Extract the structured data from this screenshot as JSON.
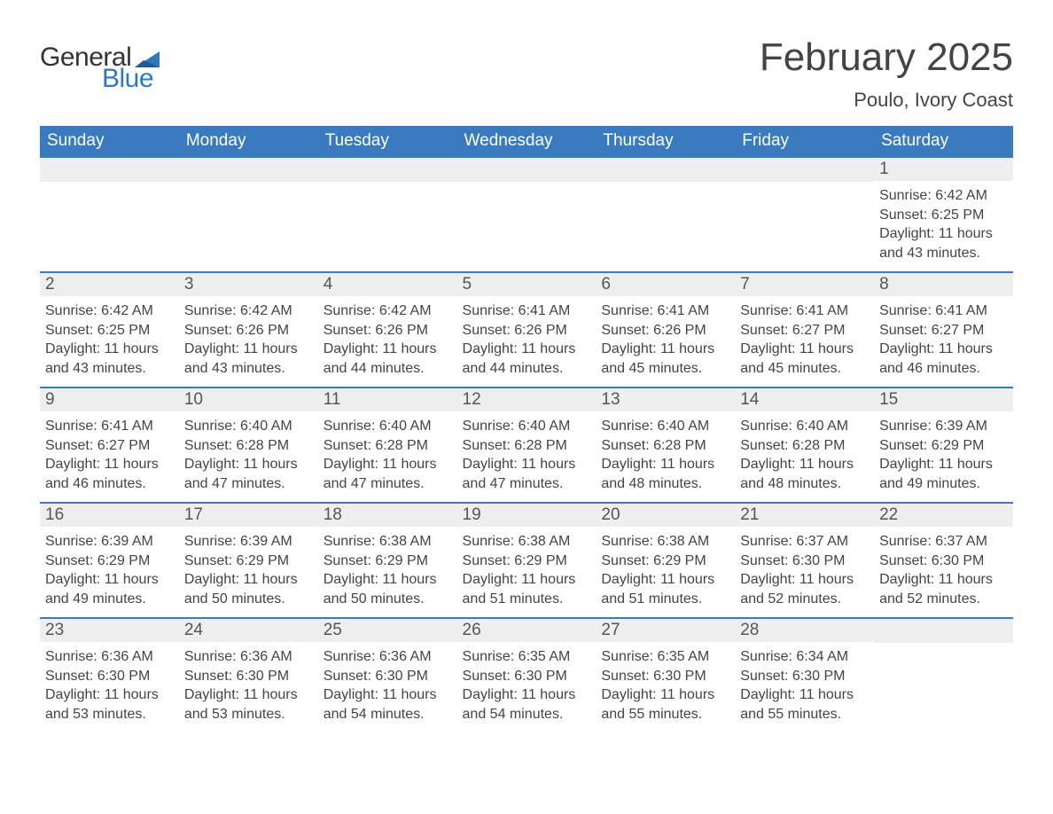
{
  "brand": {
    "word1": "General",
    "word2": "Blue",
    "tri_color": "#2f78bf",
    "text_color": "#333333",
    "blue_color": "#2f78bf"
  },
  "title": "February 2025",
  "location": "Poulo, Ivory Coast",
  "colors": {
    "header_bg": "#3a7bbf",
    "header_text": "#ffffff",
    "daynum_bg": "#eeeeee",
    "daynum_text": "#555555",
    "body_text": "#444444",
    "rule": "#3a7bbf",
    "title_color": "#444444"
  },
  "font_sizes": {
    "title_pt": 33,
    "location_pt": 17,
    "weekday_pt": 14,
    "daynum_pt": 14,
    "body_pt": 12
  },
  "weekdays": [
    "Sunday",
    "Monday",
    "Tuesday",
    "Wednesday",
    "Thursday",
    "Friday",
    "Saturday"
  ],
  "weeks": [
    [
      null,
      null,
      null,
      null,
      null,
      null,
      {
        "n": "1",
        "sunrise": "Sunrise: 6:42 AM",
        "sunset": "Sunset: 6:25 PM",
        "daylight": "Daylight: 11 hours and 43 minutes."
      }
    ],
    [
      {
        "n": "2",
        "sunrise": "Sunrise: 6:42 AM",
        "sunset": "Sunset: 6:25 PM",
        "daylight": "Daylight: 11 hours and 43 minutes."
      },
      {
        "n": "3",
        "sunrise": "Sunrise: 6:42 AM",
        "sunset": "Sunset: 6:26 PM",
        "daylight": "Daylight: 11 hours and 43 minutes."
      },
      {
        "n": "4",
        "sunrise": "Sunrise: 6:42 AM",
        "sunset": "Sunset: 6:26 PM",
        "daylight": "Daylight: 11 hours and 44 minutes."
      },
      {
        "n": "5",
        "sunrise": "Sunrise: 6:41 AM",
        "sunset": "Sunset: 6:26 PM",
        "daylight": "Daylight: 11 hours and 44 minutes."
      },
      {
        "n": "6",
        "sunrise": "Sunrise: 6:41 AM",
        "sunset": "Sunset: 6:26 PM",
        "daylight": "Daylight: 11 hours and 45 minutes."
      },
      {
        "n": "7",
        "sunrise": "Sunrise: 6:41 AM",
        "sunset": "Sunset: 6:27 PM",
        "daylight": "Daylight: 11 hours and 45 minutes."
      },
      {
        "n": "8",
        "sunrise": "Sunrise: 6:41 AM",
        "sunset": "Sunset: 6:27 PM",
        "daylight": "Daylight: 11 hours and 46 minutes."
      }
    ],
    [
      {
        "n": "9",
        "sunrise": "Sunrise: 6:41 AM",
        "sunset": "Sunset: 6:27 PM",
        "daylight": "Daylight: 11 hours and 46 minutes."
      },
      {
        "n": "10",
        "sunrise": "Sunrise: 6:40 AM",
        "sunset": "Sunset: 6:28 PM",
        "daylight": "Daylight: 11 hours and 47 minutes."
      },
      {
        "n": "11",
        "sunrise": "Sunrise: 6:40 AM",
        "sunset": "Sunset: 6:28 PM",
        "daylight": "Daylight: 11 hours and 47 minutes."
      },
      {
        "n": "12",
        "sunrise": "Sunrise: 6:40 AM",
        "sunset": "Sunset: 6:28 PM",
        "daylight": "Daylight: 11 hours and 47 minutes."
      },
      {
        "n": "13",
        "sunrise": "Sunrise: 6:40 AM",
        "sunset": "Sunset: 6:28 PM",
        "daylight": "Daylight: 11 hours and 48 minutes."
      },
      {
        "n": "14",
        "sunrise": "Sunrise: 6:40 AM",
        "sunset": "Sunset: 6:28 PM",
        "daylight": "Daylight: 11 hours and 48 minutes."
      },
      {
        "n": "15",
        "sunrise": "Sunrise: 6:39 AM",
        "sunset": "Sunset: 6:29 PM",
        "daylight": "Daylight: 11 hours and 49 minutes."
      }
    ],
    [
      {
        "n": "16",
        "sunrise": "Sunrise: 6:39 AM",
        "sunset": "Sunset: 6:29 PM",
        "daylight": "Daylight: 11 hours and 49 minutes."
      },
      {
        "n": "17",
        "sunrise": "Sunrise: 6:39 AM",
        "sunset": "Sunset: 6:29 PM",
        "daylight": "Daylight: 11 hours and 50 minutes."
      },
      {
        "n": "18",
        "sunrise": "Sunrise: 6:38 AM",
        "sunset": "Sunset: 6:29 PM",
        "daylight": "Daylight: 11 hours and 50 minutes."
      },
      {
        "n": "19",
        "sunrise": "Sunrise: 6:38 AM",
        "sunset": "Sunset: 6:29 PM",
        "daylight": "Daylight: 11 hours and 51 minutes."
      },
      {
        "n": "20",
        "sunrise": "Sunrise: 6:38 AM",
        "sunset": "Sunset: 6:29 PM",
        "daylight": "Daylight: 11 hours and 51 minutes."
      },
      {
        "n": "21",
        "sunrise": "Sunrise: 6:37 AM",
        "sunset": "Sunset: 6:30 PM",
        "daylight": "Daylight: 11 hours and 52 minutes."
      },
      {
        "n": "22",
        "sunrise": "Sunrise: 6:37 AM",
        "sunset": "Sunset: 6:30 PM",
        "daylight": "Daylight: 11 hours and 52 minutes."
      }
    ],
    [
      {
        "n": "23",
        "sunrise": "Sunrise: 6:36 AM",
        "sunset": "Sunset: 6:30 PM",
        "daylight": "Daylight: 11 hours and 53 minutes."
      },
      {
        "n": "24",
        "sunrise": "Sunrise: 6:36 AM",
        "sunset": "Sunset: 6:30 PM",
        "daylight": "Daylight: 11 hours and 53 minutes."
      },
      {
        "n": "25",
        "sunrise": "Sunrise: 6:36 AM",
        "sunset": "Sunset: 6:30 PM",
        "daylight": "Daylight: 11 hours and 54 minutes."
      },
      {
        "n": "26",
        "sunrise": "Sunrise: 6:35 AM",
        "sunset": "Sunset: 6:30 PM",
        "daylight": "Daylight: 11 hours and 54 minutes."
      },
      {
        "n": "27",
        "sunrise": "Sunrise: 6:35 AM",
        "sunset": "Sunset: 6:30 PM",
        "daylight": "Daylight: 11 hours and 55 minutes."
      },
      {
        "n": "28",
        "sunrise": "Sunrise: 6:34 AM",
        "sunset": "Sunset: 6:30 PM",
        "daylight": "Daylight: 11 hours and 55 minutes."
      },
      null
    ]
  ]
}
